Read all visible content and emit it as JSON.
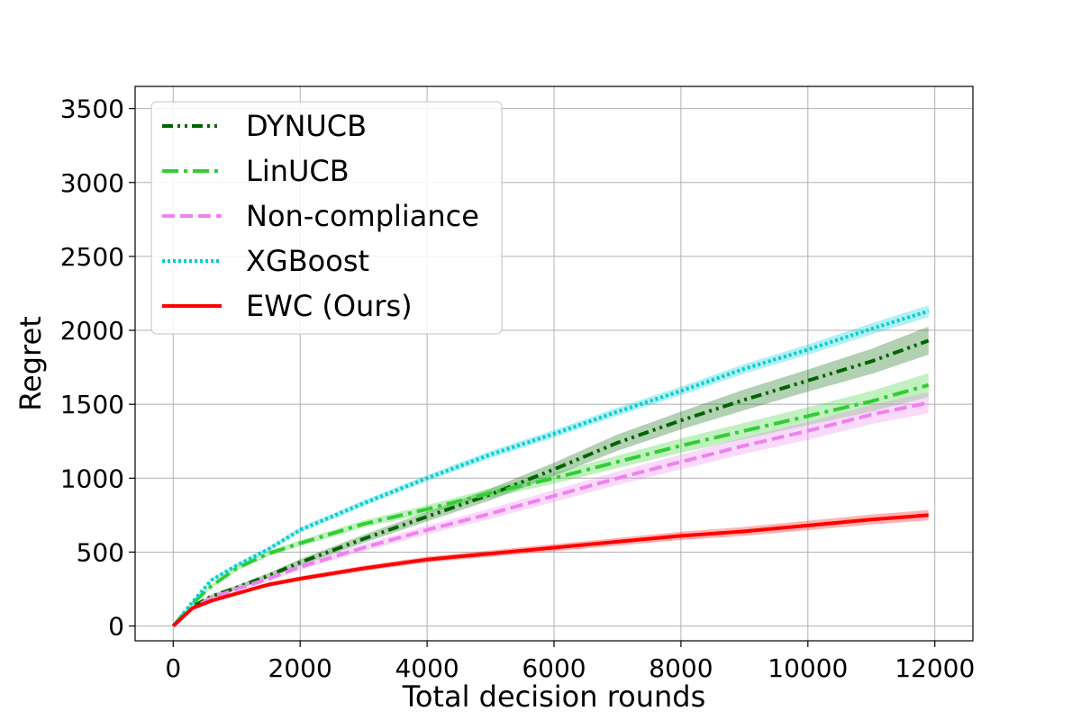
{
  "chart_data": {
    "type": "line",
    "title": "",
    "xlabel": "Total decision rounds",
    "ylabel": "Regret",
    "xlim": [
      -600,
      12600
    ],
    "ylim": [
      -100,
      3650
    ],
    "xticks": [
      0,
      2000,
      4000,
      6000,
      8000,
      10000,
      12000
    ],
    "xtick_labels": [
      "0",
      "2000",
      "4000",
      "6000",
      "8000",
      "10000",
      "12000"
    ],
    "yticks": [
      0,
      500,
      1000,
      1500,
      2000,
      2500,
      3000,
      3500
    ],
    "ytick_labels": [
      "0",
      "500",
      "1000",
      "1500",
      "2000",
      "2500",
      "3000",
      "3500"
    ],
    "grid": true,
    "legend_position": "top-left",
    "x": [
      0,
      300,
      600,
      1000,
      1500,
      2000,
      3000,
      4000,
      5000,
      6000,
      7000,
      8000,
      9000,
      10000,
      11000,
      11900
    ],
    "series": [
      {
        "name": "DYNUCB",
        "color": "#006400",
        "style": "dashdotdot",
        "values": [
          0,
          130,
          200,
          260,
          340,
          430,
          590,
          740,
          890,
          1060,
          1240,
          1390,
          1530,
          1660,
          1790,
          1930
        ],
        "band": [
          0,
          8,
          12,
          15,
          18,
          22,
          28,
          32,
          40,
          45,
          55,
          60,
          70,
          75,
          85,
          95
        ]
      },
      {
        "name": "LinUCB",
        "color": "#32cd32",
        "style": "dashdot",
        "values": [
          0,
          150,
          270,
          390,
          490,
          560,
          690,
          790,
          900,
          1000,
          1110,
          1220,
          1320,
          1420,
          1520,
          1630
        ],
        "band": [
          0,
          8,
          12,
          15,
          18,
          20,
          25,
          28,
          32,
          38,
          42,
          48,
          55,
          60,
          70,
          80
        ]
      },
      {
        "name": "Non-compliance",
        "color": "#ee82ee",
        "style": "dashed",
        "values": [
          0,
          120,
          190,
          250,
          320,
          400,
          530,
          650,
          760,
          880,
          1000,
          1110,
          1220,
          1320,
          1430,
          1510
        ],
        "band": [
          0,
          8,
          12,
          15,
          18,
          20,
          25,
          30,
          35,
          40,
          45,
          50,
          55,
          60,
          65,
          70
        ]
      },
      {
        "name": "XGBoost",
        "color": "#00ced1",
        "style": "dotted",
        "values": [
          0,
          160,
          310,
          410,
          520,
          650,
          830,
          1000,
          1160,
          1300,
          1450,
          1590,
          1740,
          1870,
          2010,
          2130
        ],
        "band": [
          0,
          8,
          12,
          14,
          16,
          18,
          20,
          22,
          24,
          26,
          28,
          30,
          32,
          35,
          38,
          40
        ]
      },
      {
        "name": "EWC (Ours)",
        "color": "#ff0000",
        "style": "solid",
        "values": [
          0,
          120,
          170,
          220,
          280,
          320,
          390,
          450,
          490,
          530,
          570,
          610,
          640,
          680,
          720,
          750
        ],
        "band": [
          0,
          8,
          10,
          12,
          14,
          16,
          18,
          20,
          22,
          24,
          26,
          28,
          30,
          32,
          34,
          35
        ]
      }
    ]
  }
}
